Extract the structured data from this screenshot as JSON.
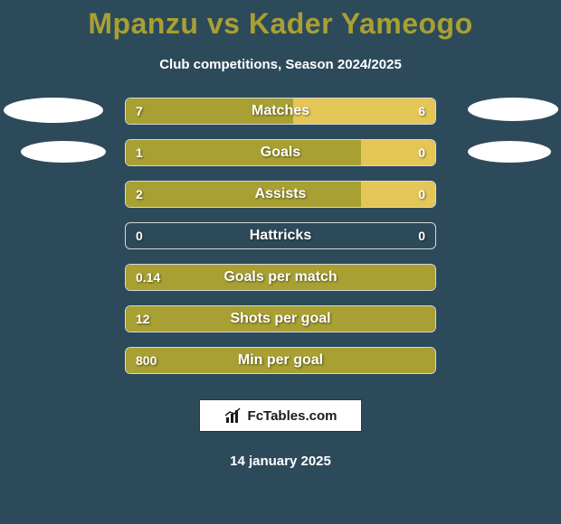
{
  "title": "Mpanzu vs Kader Yameogo",
  "subtitle": "Club competitions, Season 2024/2025",
  "date": "14 january 2025",
  "logo_text": "FcTables.com",
  "colors": {
    "background": "#2d4a5a",
    "title": "#a8a032",
    "text": "#ffffff",
    "bar_left": "#a8a032",
    "bar_right": "#e4c657",
    "bar_border": "#d8d8d8",
    "logo_bg": "#ffffff"
  },
  "bars": [
    {
      "label": "Matches",
      "left_value": "7",
      "right_value": "6",
      "left_pct": 54,
      "right_pct": 46
    },
    {
      "label": "Goals",
      "left_value": "1",
      "right_value": "0",
      "left_pct": 76,
      "right_pct": 24
    },
    {
      "label": "Assists",
      "left_value": "2",
      "right_value": "0",
      "left_pct": 76,
      "right_pct": 24
    },
    {
      "label": "Hattricks",
      "left_value": "0",
      "right_value": "0",
      "left_pct": 0,
      "right_pct": 0
    },
    {
      "label": "Goals per match",
      "left_value": "0.14",
      "right_value": "",
      "left_pct": 100,
      "right_pct": 0
    },
    {
      "label": "Shots per goal",
      "left_value": "12",
      "right_value": "",
      "left_pct": 100,
      "right_pct": 0
    },
    {
      "label": "Min per goal",
      "left_value": "800",
      "right_value": "",
      "left_pct": 100,
      "right_pct": 0
    }
  ]
}
